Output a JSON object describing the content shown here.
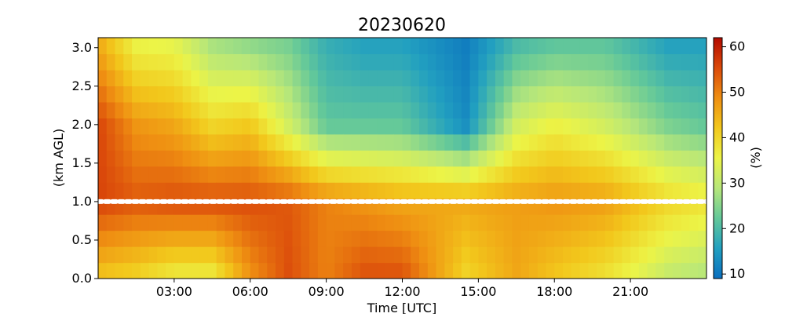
{
  "chart_data": {
    "type": "heatmap",
    "title": "20230620",
    "xlabel": "Time [UTC]",
    "ylabel": "(km AGL)",
    "colorbar_label": "(%)",
    "x_ticks": [
      "03:00",
      "06:00",
      "09:00",
      "12:00",
      "15:00",
      "18:00",
      "21:00"
    ],
    "x_tick_hours": [
      3,
      6,
      9,
      12,
      15,
      18,
      21
    ],
    "xlim_hours": [
      0,
      24
    ],
    "y_ticks": [
      "0.0",
      "0.5",
      "1.0",
      "1.5",
      "2.0",
      "2.5",
      "3.0"
    ],
    "y_tick_values": [
      0.0,
      0.5,
      1.0,
      1.5,
      2.0,
      2.5,
      3.0
    ],
    "ylim_km": [
      0,
      3.13
    ],
    "colorbar_ticks": [
      "10",
      "20",
      "30",
      "40",
      "50",
      "60"
    ],
    "colorbar_tick_values": [
      10,
      20,
      30,
      40,
      50,
      60
    ],
    "clim": [
      9,
      62
    ],
    "colormap": [
      "#0a6fbf",
      "#22a0c0",
      "#63c89a",
      "#b7e77a",
      "#ecf447",
      "#f2c81c",
      "#ef8f12",
      "#db4a0b",
      "#b30a00"
    ],
    "marker_line": {
      "height_km": 1.0,
      "color": "#ffffff",
      "style": "dotted"
    },
    "profile_cells": 72,
    "height_cells": 15,
    "profile_summary": [
      {
        "time_hours": 0.0,
        "surface": 42,
        "at_1km": 56,
        "at_2km": 56,
        "at_3km": 46
      },
      {
        "time_hours": 1.5,
        "surface": 40,
        "at_1km": 54,
        "at_2km": 48,
        "at_3km": 36
      },
      {
        "time_hours": 3.0,
        "surface": 36,
        "at_1km": 55,
        "at_2km": 46,
        "at_3km": 35
      },
      {
        "time_hours": 4.5,
        "surface": 36,
        "at_1km": 55,
        "at_2km": 40,
        "at_3km": 28
      },
      {
        "time_hours": 6.0,
        "surface": 48,
        "at_1km": 55,
        "at_2km": 42,
        "at_3km": 26
      },
      {
        "time_hours": 7.5,
        "surface": 55,
        "at_1km": 54,
        "at_2km": 32,
        "at_3km": 24
      },
      {
        "time_hours": 9.0,
        "surface": 50,
        "at_1km": 50,
        "at_2km": 22,
        "at_3km": 18
      },
      {
        "time_hours": 10.5,
        "surface": 55,
        "at_1km": 48,
        "at_2km": 22,
        "at_3km": 16
      },
      {
        "time_hours": 12.0,
        "surface": 55,
        "at_1km": 46,
        "at_2km": 22,
        "at_3km": 16
      },
      {
        "time_hours": 14.5,
        "surface": 40,
        "at_1km": 46,
        "at_2km": 13,
        "at_3km": 11
      },
      {
        "time_hours": 16.5,
        "surface": 46,
        "at_1km": 47,
        "at_2km": 32,
        "at_3km": 20
      },
      {
        "time_hours": 18.0,
        "surface": 42,
        "at_1km": 48,
        "at_2km": 36,
        "at_3km": 22
      },
      {
        "time_hours": 20.0,
        "surface": 38,
        "at_1km": 47,
        "at_2km": 32,
        "at_3km": 22
      },
      {
        "time_hours": 22.5,
        "surface": 30,
        "at_1km": 40,
        "at_2km": 24,
        "at_3km": 16
      },
      {
        "time_hours": 24.0,
        "surface": 28,
        "at_1km": 38,
        "at_2km": 22,
        "at_3km": 16
      }
    ]
  }
}
